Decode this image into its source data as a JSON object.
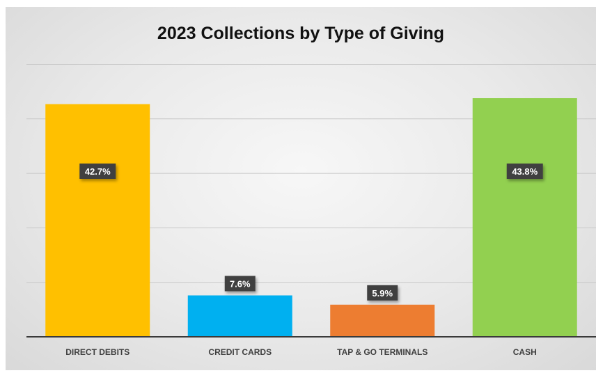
{
  "chart_data": {
    "type": "bar",
    "title": "2023 Collections by Type of Giving",
    "xlabel": "",
    "ylabel": "",
    "categories": [
      "DIRECT DEBITS",
      "CREDIT CARDS",
      "TAP & GO TERMINALS",
      "CASH"
    ],
    "values": [
      42.7,
      7.6,
      5.9,
      43.8
    ],
    "data_labels": [
      "42.7%",
      "7.6%",
      "5.9%",
      "43.8%"
    ],
    "colors": [
      "#FFC000",
      "#00B0F0",
      "#ED7D31",
      "#92D050"
    ],
    "ylim": [
      0,
      50
    ],
    "grid": true,
    "legend": "none"
  }
}
